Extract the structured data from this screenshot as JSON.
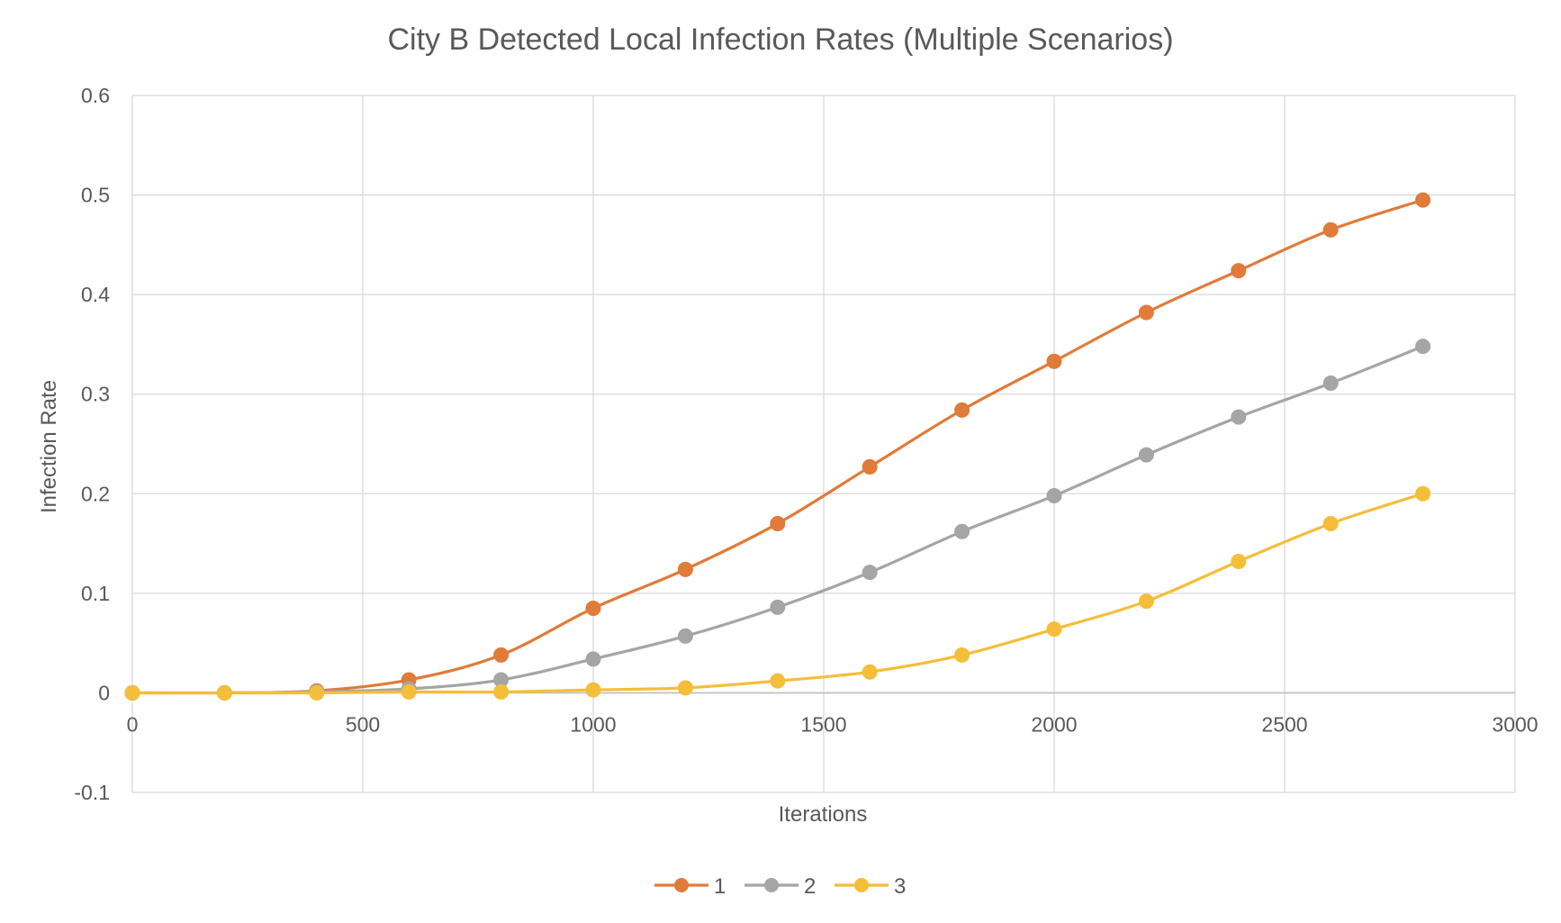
{
  "chart_data": {
    "type": "line",
    "title": "City B Detected Local Infection Rates (Multiple Scenarios)",
    "xlabel": "Iterations",
    "ylabel": "Infection Rate",
    "xlim": [
      0,
      3000
    ],
    "ylim": [
      -0.1,
      0.6
    ],
    "xticks": [
      0,
      500,
      1000,
      1500,
      2000,
      2500,
      3000
    ],
    "yticks": [
      -0.1,
      0,
      0.1,
      0.2,
      0.3,
      0.4,
      0.5,
      0.6
    ],
    "grid": true,
    "legend": "bottom",
    "smooth": true,
    "x": [
      0,
      200,
      400,
      600,
      800,
      1000,
      1200,
      1400,
      1600,
      1800,
      2000,
      2200,
      2400,
      2600,
      2800
    ],
    "series": [
      {
        "name": "1",
        "color": "#E07B39",
        "values": [
          0,
          0,
          0.002,
          0.013,
          0.038,
          0.085,
          0.124,
          0.17,
          0.227,
          0.284,
          0.333,
          0.382,
          0.424,
          0.465,
          0.495
        ]
      },
      {
        "name": "2",
        "color": "#A5A5A5",
        "values": [
          0,
          0,
          0.001,
          0.004,
          0.013,
          0.034,
          0.057,
          0.086,
          0.121,
          0.162,
          0.198,
          0.239,
          0.277,
          0.311,
          0.348
        ]
      },
      {
        "name": "3",
        "color": "#F5BE3A",
        "values": [
          0,
          0,
          0,
          0.001,
          0.001,
          0.003,
          0.005,
          0.012,
          0.021,
          0.038,
          0.064,
          0.092,
          0.132,
          0.17,
          0.2
        ]
      }
    ]
  }
}
